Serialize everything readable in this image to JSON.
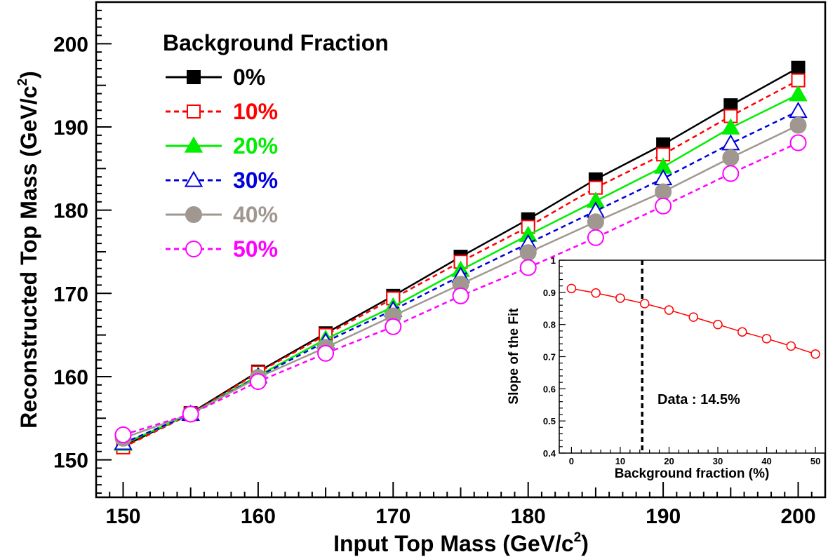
{
  "chart_data": [
    {
      "type": "line",
      "xlabel_main": "Input Top Mass (GeV/c",
      "xlabel_sup": "2",
      "xlabel_tail": ")",
      "ylabel_main": "Reconstructed Top Mass (GeV/c",
      "ylabel_sup": "2",
      "ylabel_tail": ")",
      "xlim": [
        148,
        202
      ],
      "ylim": [
        145.5,
        205
      ],
      "xticks": [
        150,
        160,
        170,
        180,
        190,
        200
      ],
      "yticks": [
        150,
        160,
        170,
        180,
        190,
        200
      ],
      "legend_title": "Background Fraction",
      "legend_placement": "top-left",
      "x": [
        150,
        155,
        160,
        165,
        170,
        175,
        180,
        185,
        190,
        195,
        200
      ],
      "series": [
        {
          "name": "0%",
          "color": "#000000",
          "marker": "square",
          "filled": true,
          "line": "solid",
          "values": [
            151.6,
            155.6,
            160.6,
            165.2,
            169.7,
            174.4,
            178.9,
            183.7,
            187.9,
            192.6,
            197.1
          ]
        },
        {
          "name": "10%",
          "color": "#ff0000",
          "marker": "square",
          "filled": false,
          "line": "dashed",
          "values": [
            151.5,
            155.5,
            160.5,
            165.0,
            169.4,
            173.8,
            178.0,
            182.7,
            186.7,
            191.3,
            195.6
          ]
        },
        {
          "name": "20%",
          "color": "#00ee00",
          "marker": "triangle",
          "filled": true,
          "line": "solid",
          "values": [
            151.9,
            155.5,
            160.1,
            164.5,
            168.4,
            172.8,
            177.0,
            181.1,
            185.2,
            189.9,
            193.9
          ]
        },
        {
          "name": "30%",
          "color": "#0000dd",
          "marker": "triangle",
          "filled": false,
          "line": "dashed",
          "values": [
            152.0,
            155.5,
            160.0,
            164.2,
            168.0,
            172.1,
            176.0,
            179.9,
            183.8,
            188.0,
            191.9
          ]
        },
        {
          "name": "40%",
          "color": "#a09890",
          "marker": "circle",
          "filled": true,
          "line": "solid",
          "values": [
            152.6,
            155.5,
            159.9,
            163.5,
            167.3,
            171.1,
            174.9,
            178.6,
            182.2,
            186.3,
            190.2
          ]
        },
        {
          "name": "50%",
          "color": "#ff00ff",
          "marker": "circle",
          "filled": false,
          "line": "dashed",
          "values": [
            153.0,
            155.5,
            159.4,
            162.8,
            166.0,
            169.7,
            173.1,
            176.7,
            180.5,
            184.4,
            188.1
          ]
        }
      ]
    },
    {
      "type": "line",
      "inset": true,
      "xlabel": "Background fraction (%)",
      "ylabel": "Slope of the Fit",
      "xlim": [
        -2.5,
        52
      ],
      "ylim": [
        0.4,
        1.0
      ],
      "xticks": [
        0,
        10,
        20,
        30,
        40,
        50
      ],
      "yticks": [
        0.4,
        0.5,
        0.6,
        0.7,
        0.8,
        0.9,
        1
      ],
      "annotation": "Data : 14.5%",
      "annotation_x": 14.5,
      "series": [
        {
          "color": "#ff0000",
          "marker": "circle",
          "filled": false,
          "line": "solid",
          "x": [
            0,
            5,
            10,
            15,
            20,
            25,
            30,
            35,
            40,
            45,
            50
          ],
          "values": [
            0.912,
            0.898,
            0.882,
            0.865,
            0.845,
            0.823,
            0.8,
            0.777,
            0.756,
            0.733,
            0.708
          ]
        }
      ]
    }
  ]
}
